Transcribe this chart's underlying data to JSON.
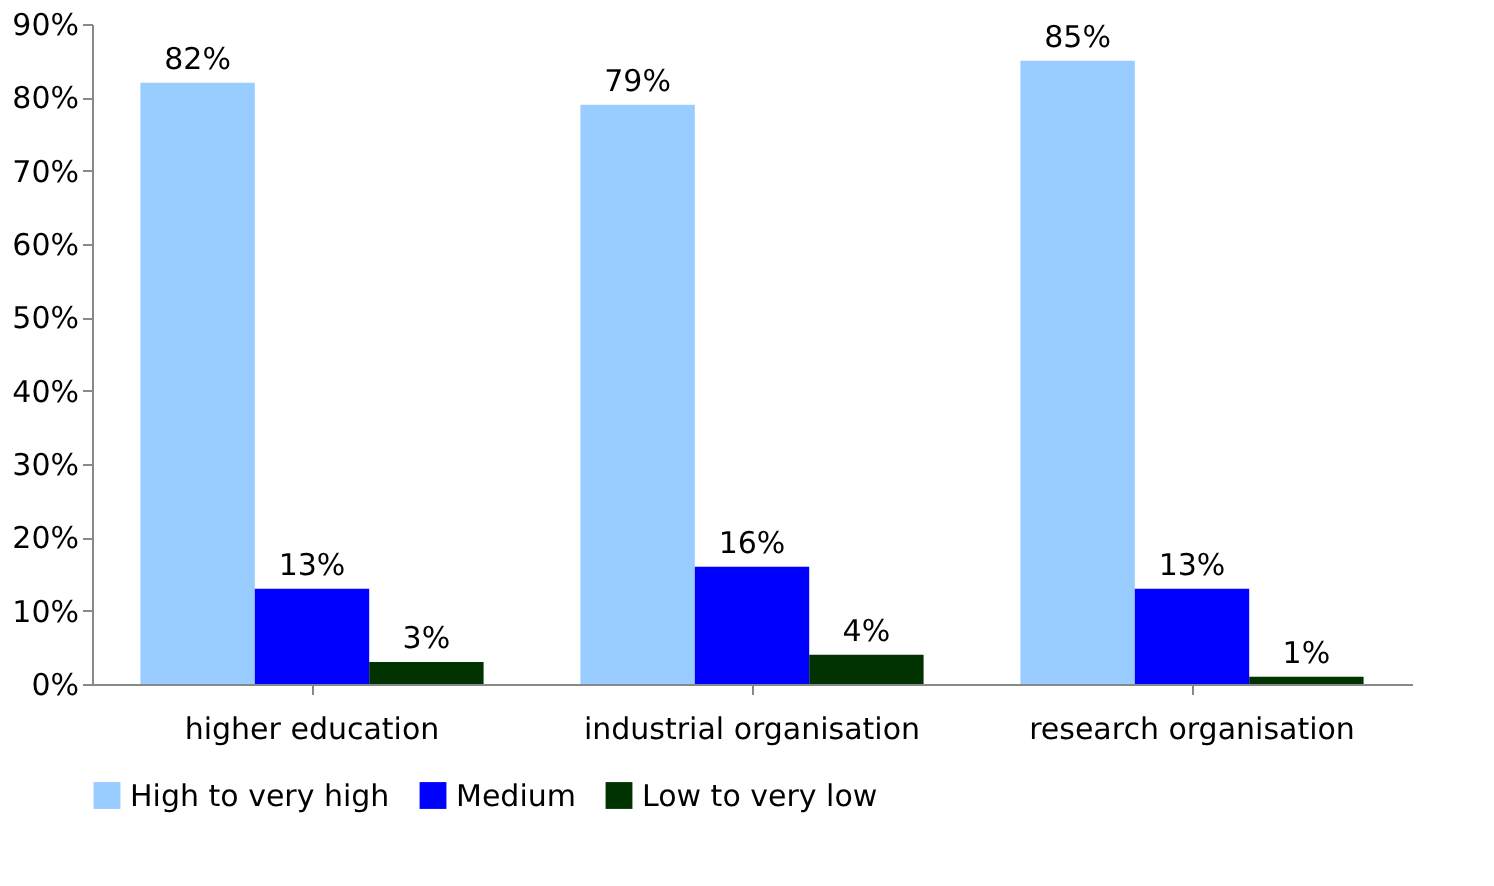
{
  "chart_data": {
    "type": "bar",
    "categories": [
      "higher education",
      "industrial organisation",
      "research organisation"
    ],
    "series": [
      {
        "name": "High to very high",
        "color": "#99ccff",
        "values": [
          82,
          79,
          85
        ],
        "value_labels": [
          "82%",
          "79%",
          "85%"
        ]
      },
      {
        "name": "Medium",
        "color": "#0000ff",
        "values": [
          13,
          16,
          13
        ],
        "value_labels": [
          "13%",
          "16%",
          "13%"
        ]
      },
      {
        "name": "Low to very low",
        "color": "#003300",
        "values": [
          3,
          4,
          1
        ],
        "value_labels": [
          "3%",
          "4%",
          "1%"
        ]
      }
    ],
    "ylim": [
      0,
      90
    ],
    "yticks": [
      {
        "value": 0,
        "label": "0%"
      },
      {
        "value": 10,
        "label": "10%"
      },
      {
        "value": 20,
        "label": "20%"
      },
      {
        "value": 30,
        "label": "30%"
      },
      {
        "value": 40,
        "label": "40%"
      },
      {
        "value": 50,
        "label": "50%"
      },
      {
        "value": 60,
        "label": "60%"
      },
      {
        "value": 70,
        "label": "70%"
      },
      {
        "value": 80,
        "label": "80%"
      },
      {
        "value": 90,
        "label": "90%"
      }
    ],
    "grid": false,
    "legend": "bottom"
  }
}
